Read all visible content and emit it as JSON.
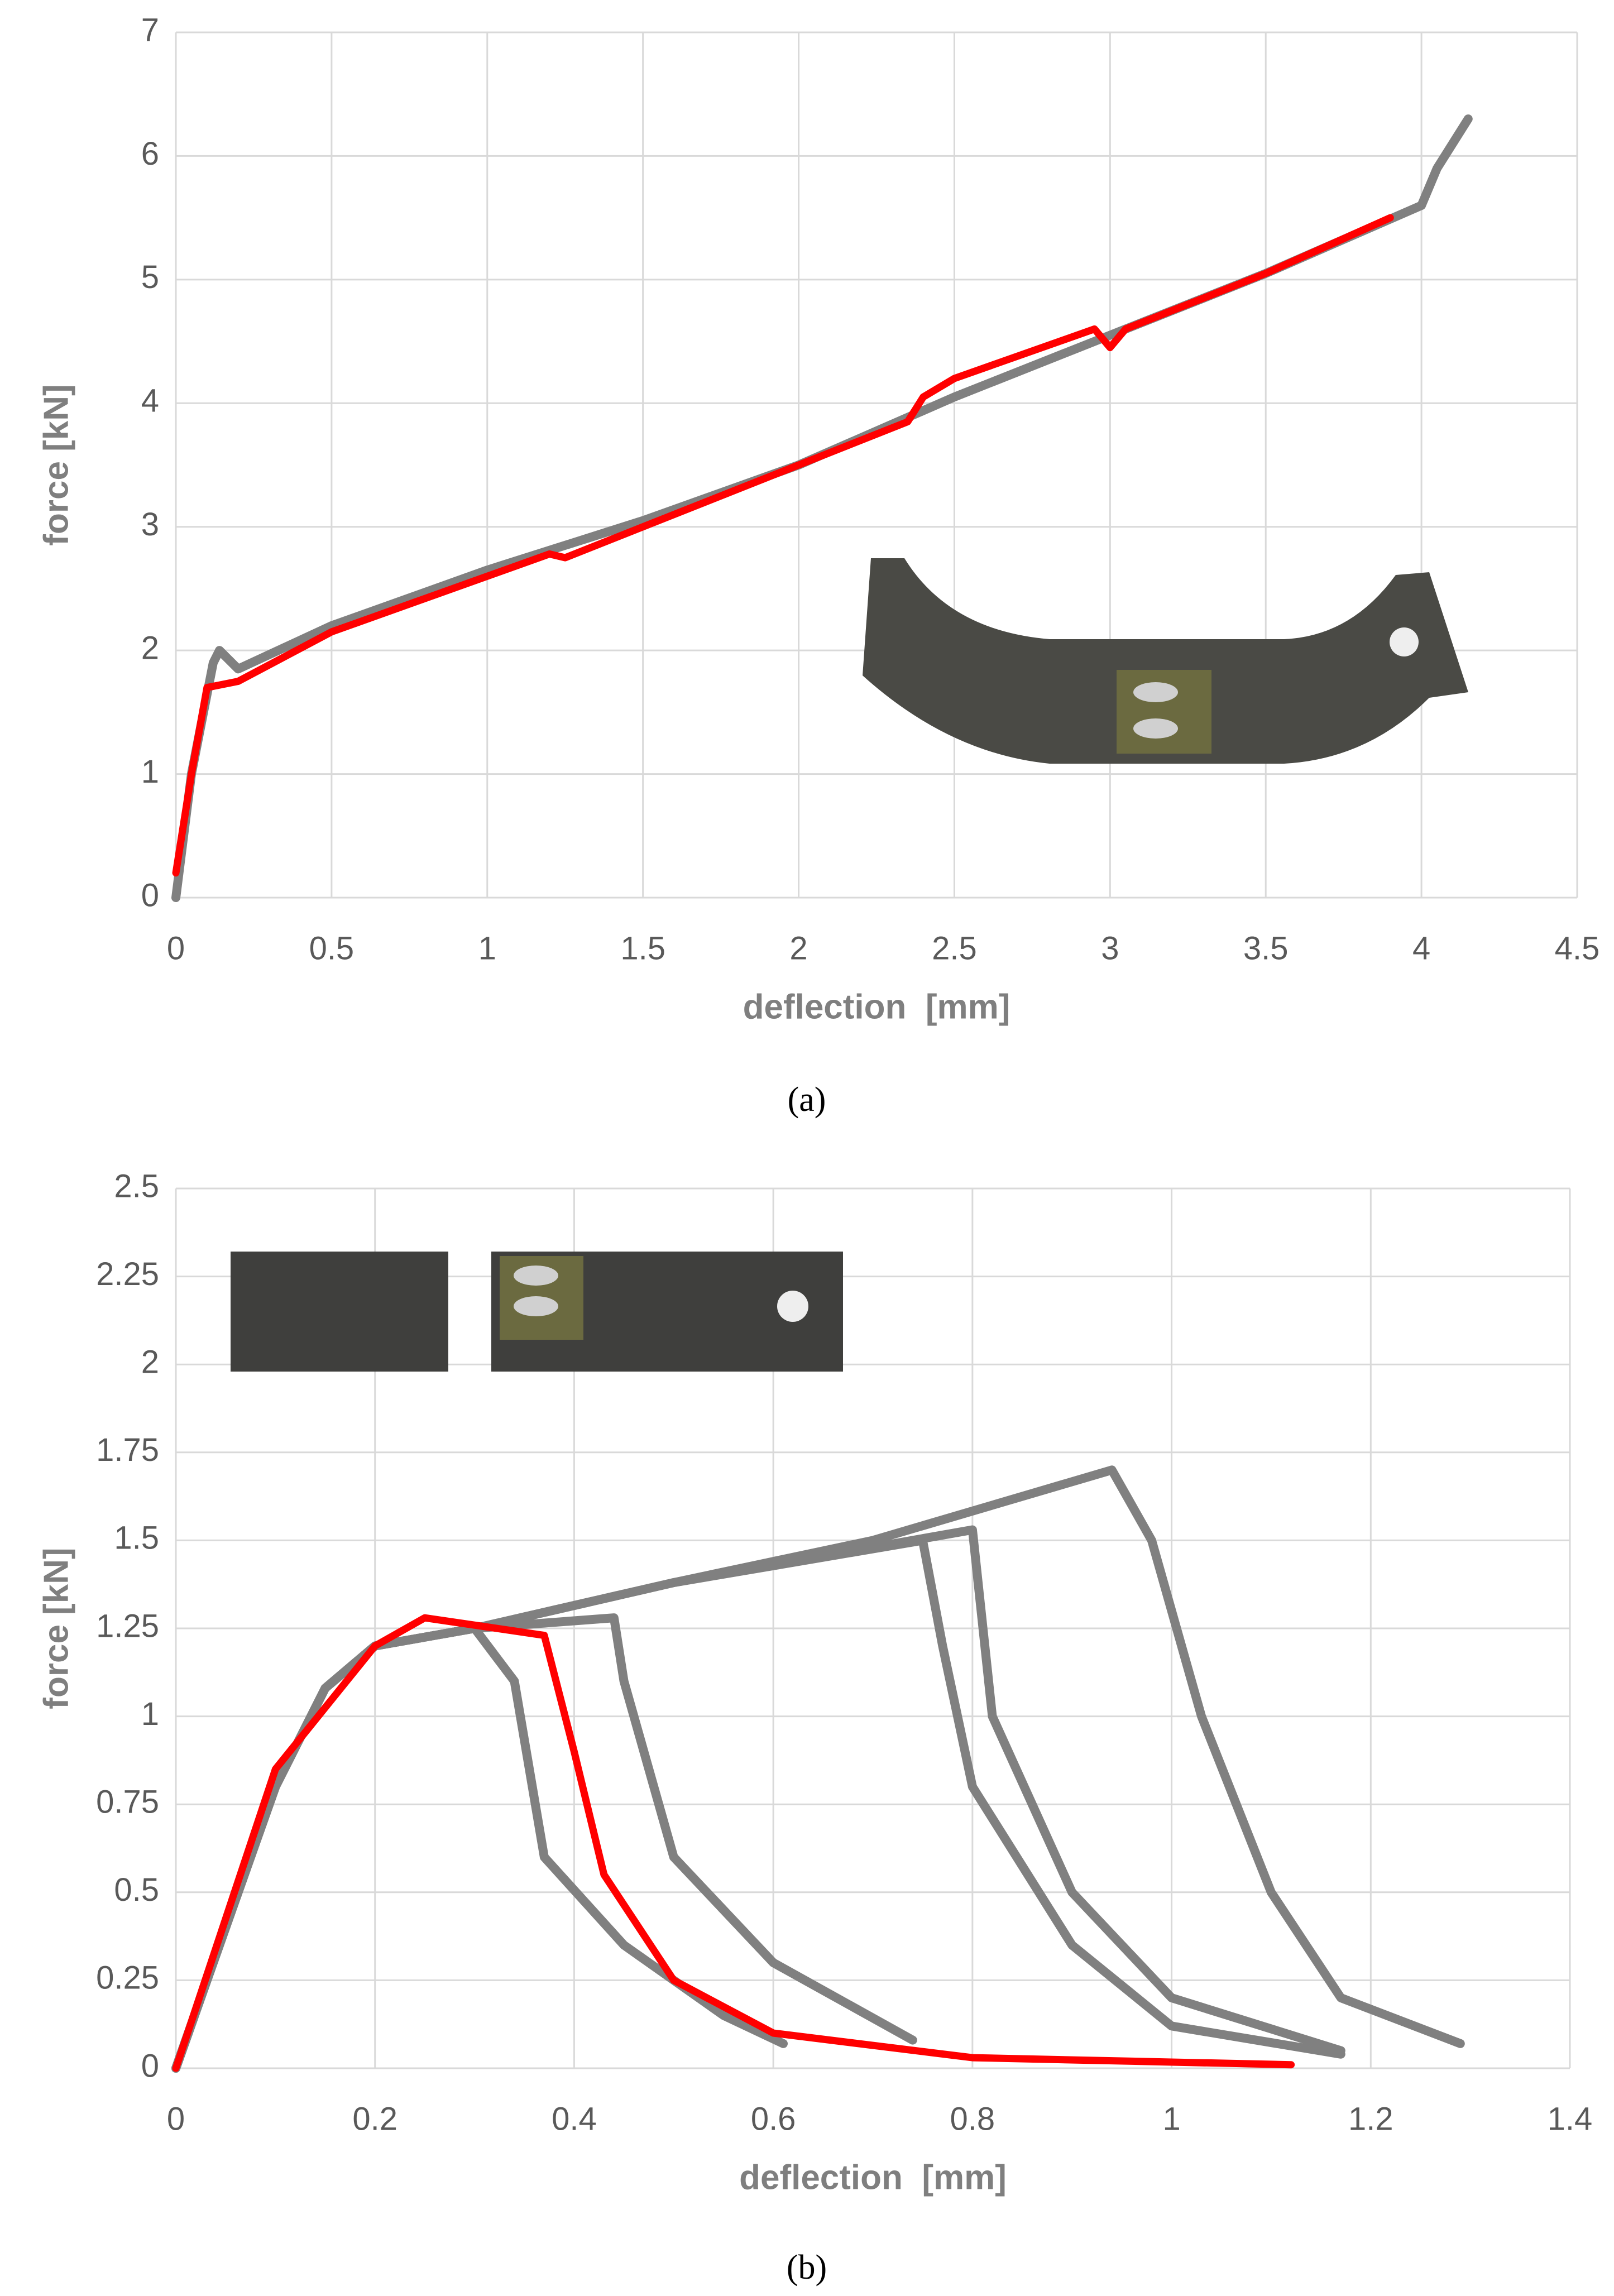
{
  "chart_data": [
    {
      "type": "line",
      "caption": "(a)",
      "xlabel": "deflection  [mm]",
      "ylabel": "force [kN]",
      "xlim": [
        0,
        4.5
      ],
      "xticks": [
        0,
        0.5,
        1,
        1.5,
        2,
        2.5,
        3,
        3.5,
        4,
        4.5
      ],
      "ylim": [
        0,
        7
      ],
      "yticks": [
        0,
        1,
        2,
        3,
        4,
        5,
        6,
        7
      ],
      "grid": true,
      "series": [
        {
          "color": "#808080",
          "x": [
            0,
            0.05,
            0.12,
            0.14,
            0.2,
            0.5,
            1,
            1.5,
            2,
            2.5,
            3,
            3.5,
            4,
            4.05,
            4.15
          ],
          "values": [
            0,
            1.0,
            1.9,
            2.0,
            1.85,
            2.2,
            2.65,
            3.05,
            3.5,
            4.05,
            4.55,
            5.05,
            5.6,
            5.9,
            6.3
          ]
        },
        {
          "color": "#ff0000",
          "x": [
            0,
            0.05,
            0.1,
            0.2,
            0.5,
            1,
            1.2,
            1.25,
            1.5,
            2,
            2.35,
            2.4,
            2.5,
            2.95,
            3,
            3.05,
            3.5,
            3.9
          ],
          "values": [
            0.2,
            1.0,
            1.7,
            1.75,
            2.15,
            2.6,
            2.78,
            2.75,
            3.0,
            3.5,
            3.85,
            4.05,
            4.2,
            4.6,
            4.45,
            4.6,
            5.05,
            5.5
          ]
        }
      ]
    },
    {
      "type": "line",
      "caption": "(b)",
      "xlabel": "deflection  [mm]",
      "ylabel": "force [kN]",
      "xlim": [
        0,
        1.4
      ],
      "xticks": [
        0,
        0.2,
        0.4,
        0.6,
        0.8,
        1,
        1.2,
        1.4
      ],
      "ylim": [
        0,
        2.5
      ],
      "yticks": [
        0,
        0.25,
        0.5,
        0.75,
        1,
        1.25,
        1.5,
        1.75,
        2,
        2.25,
        2.5
      ],
      "grid": true,
      "series": [
        {
          "color": "#808080",
          "x": [
            0,
            0.05,
            0.1,
            0.15,
            0.2,
            0.3,
            0.34,
            0.37,
            0.45,
            0.55,
            0.61
          ],
          "values": [
            0,
            0.4,
            0.8,
            1.08,
            1.2,
            1.25,
            1.1,
            0.6,
            0.35,
            0.15,
            0.07
          ]
        },
        {
          "color": "#808080",
          "x": [
            0,
            0.05,
            0.1,
            0.15,
            0.2,
            0.3,
            0.44,
            0.45,
            0.5,
            0.6,
            0.74
          ],
          "values": [
            0,
            0.4,
            0.8,
            1.08,
            1.2,
            1.25,
            1.28,
            1.1,
            0.6,
            0.3,
            0.08
          ]
        },
        {
          "color": "#808080",
          "x": [
            0,
            0.05,
            0.1,
            0.15,
            0.2,
            0.3,
            0.5,
            0.75,
            0.77,
            0.8,
            0.9,
            1.0,
            1.17
          ],
          "values": [
            0,
            0.4,
            0.8,
            1.08,
            1.2,
            1.25,
            1.38,
            1.5,
            1.2,
            0.8,
            0.35,
            0.12,
            0.04
          ]
        },
        {
          "color": "#808080",
          "x": [
            0,
            0.05,
            0.1,
            0.15,
            0.2,
            0.3,
            0.5,
            0.8,
            0.82,
            0.9,
            1.0,
            1.17
          ],
          "values": [
            0,
            0.4,
            0.8,
            1.08,
            1.2,
            1.25,
            1.38,
            1.53,
            1.0,
            0.5,
            0.2,
            0.05
          ]
        },
        {
          "color": "#808080",
          "x": [
            0,
            0.05,
            0.1,
            0.15,
            0.2,
            0.3,
            0.5,
            0.7,
            0.94,
            0.98,
            1.03,
            1.1,
            1.17,
            1.29
          ],
          "values": [
            0,
            0.4,
            0.8,
            1.08,
            1.2,
            1.25,
            1.38,
            1.5,
            1.7,
            1.5,
            1.0,
            0.5,
            0.2,
            0.07
          ]
        },
        {
          "color": "#ff0000",
          "x": [
            0,
            0.1,
            0.2,
            0.25,
            0.37,
            0.4,
            0.43,
            0.5,
            0.6,
            0.8,
            1.12
          ],
          "values": [
            0,
            0.85,
            1.2,
            1.28,
            1.23,
            0.9,
            0.55,
            0.25,
            0.1,
            0.03,
            0.01
          ]
        }
      ]
    }
  ]
}
